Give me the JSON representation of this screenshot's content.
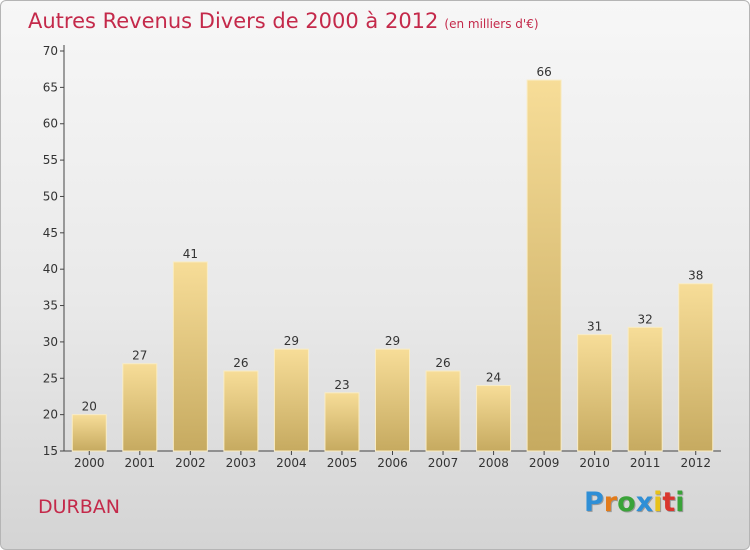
{
  "header": {
    "title": "Autres Revenus Divers de 2000 à 2012",
    "subtitle": "(en milliers d'€)"
  },
  "footer": {
    "commune": "DURBAN",
    "brand_letters": [
      "P",
      "r",
      "o",
      "x",
      "i",
      "t",
      "i"
    ]
  },
  "colors": {
    "title": "#c4294a",
    "bar_light": "#f7dd98",
    "bar_dark": "#c6aa60",
    "axis": "#444444"
  },
  "chart_data": {
    "type": "bar",
    "title": "Autres Revenus Divers de 2000 à 2012",
    "subtitle": "(en milliers d'€)",
    "xlabel": "",
    "ylabel": "",
    "categories": [
      "2000",
      "2001",
      "2002",
      "2003",
      "2004",
      "2005",
      "2006",
      "2007",
      "2008",
      "2009",
      "2010",
      "2011",
      "2012"
    ],
    "values": [
      20,
      27,
      41,
      26,
      29,
      23,
      29,
      26,
      24,
      66,
      31,
      32,
      38
    ],
    "ylim": [
      15,
      70
    ],
    "yticks": [
      15,
      20,
      25,
      30,
      35,
      40,
      45,
      50,
      55,
      60,
      65,
      70
    ],
    "grid": false,
    "data_labels": true
  }
}
